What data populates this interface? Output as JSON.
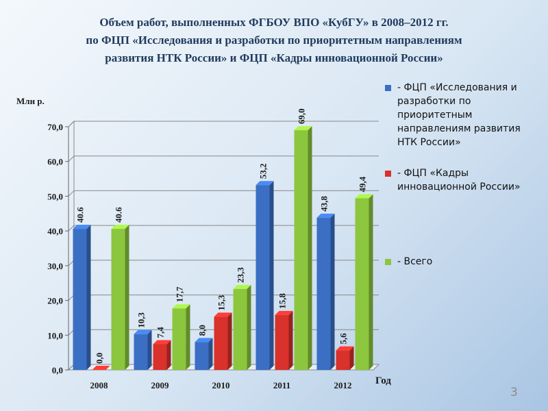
{
  "chart_data": {
    "type": "bar",
    "title": [
      "Объем работ, выполненных ФГБОУ ВПО «КубГУ» в 2008–2012 гг.",
      "по ФЦП «Исследования и разработки по приоритетным направлениям",
      "развития НТК России» и ФЦП «Кадры инновационной России»"
    ],
    "y_label": "Млн р.",
    "x_label": "Год",
    "categories": [
      "2008",
      "2009",
      "2010",
      "2011",
      "2012"
    ],
    "series": [
      {
        "name": "- ФЦП «Исследования и разработки по приоритетным направлениям развития НТК России»",
        "color": "#3a6fc4",
        "values": [
          40.6,
          10.3,
          8.0,
          53.2,
          43.8
        ],
        "value_labels": [
          "40.6",
          "10,3",
          "8,0",
          "53,2",
          "43,8"
        ]
      },
      {
        "name": "- ФЦП «Кадры инновационной России»",
        "color": "#d9312b",
        "values": [
          0.0,
          7.4,
          15.3,
          15.8,
          5.6
        ],
        "value_labels": [
          "0,0",
          "7,4",
          "15,3",
          "15,8",
          "5,6"
        ]
      },
      {
        "name": "- Всего",
        "color": "#8cc63e",
        "values": [
          40.6,
          17.7,
          23.3,
          69.0,
          49.4
        ],
        "value_labels": [
          "40.6",
          "17,7",
          "23,3",
          "69,0",
          "49,4"
        ]
      }
    ],
    "ylim": [
      0,
      70
    ],
    "yticks": [
      {
        "value": 0,
        "label": "0,0"
      },
      {
        "value": 10,
        "label": "10,0"
      },
      {
        "value": 20,
        "label": "20,0"
      },
      {
        "value": 30,
        "label": "30,0"
      },
      {
        "value": 40,
        "label": "40,0"
      },
      {
        "value": 50,
        "label": "50,0"
      },
      {
        "value": 60,
        "label": "60,0"
      },
      {
        "value": 70,
        "label": "70,0"
      }
    ],
    "grid": true
  },
  "slide_number": "3"
}
